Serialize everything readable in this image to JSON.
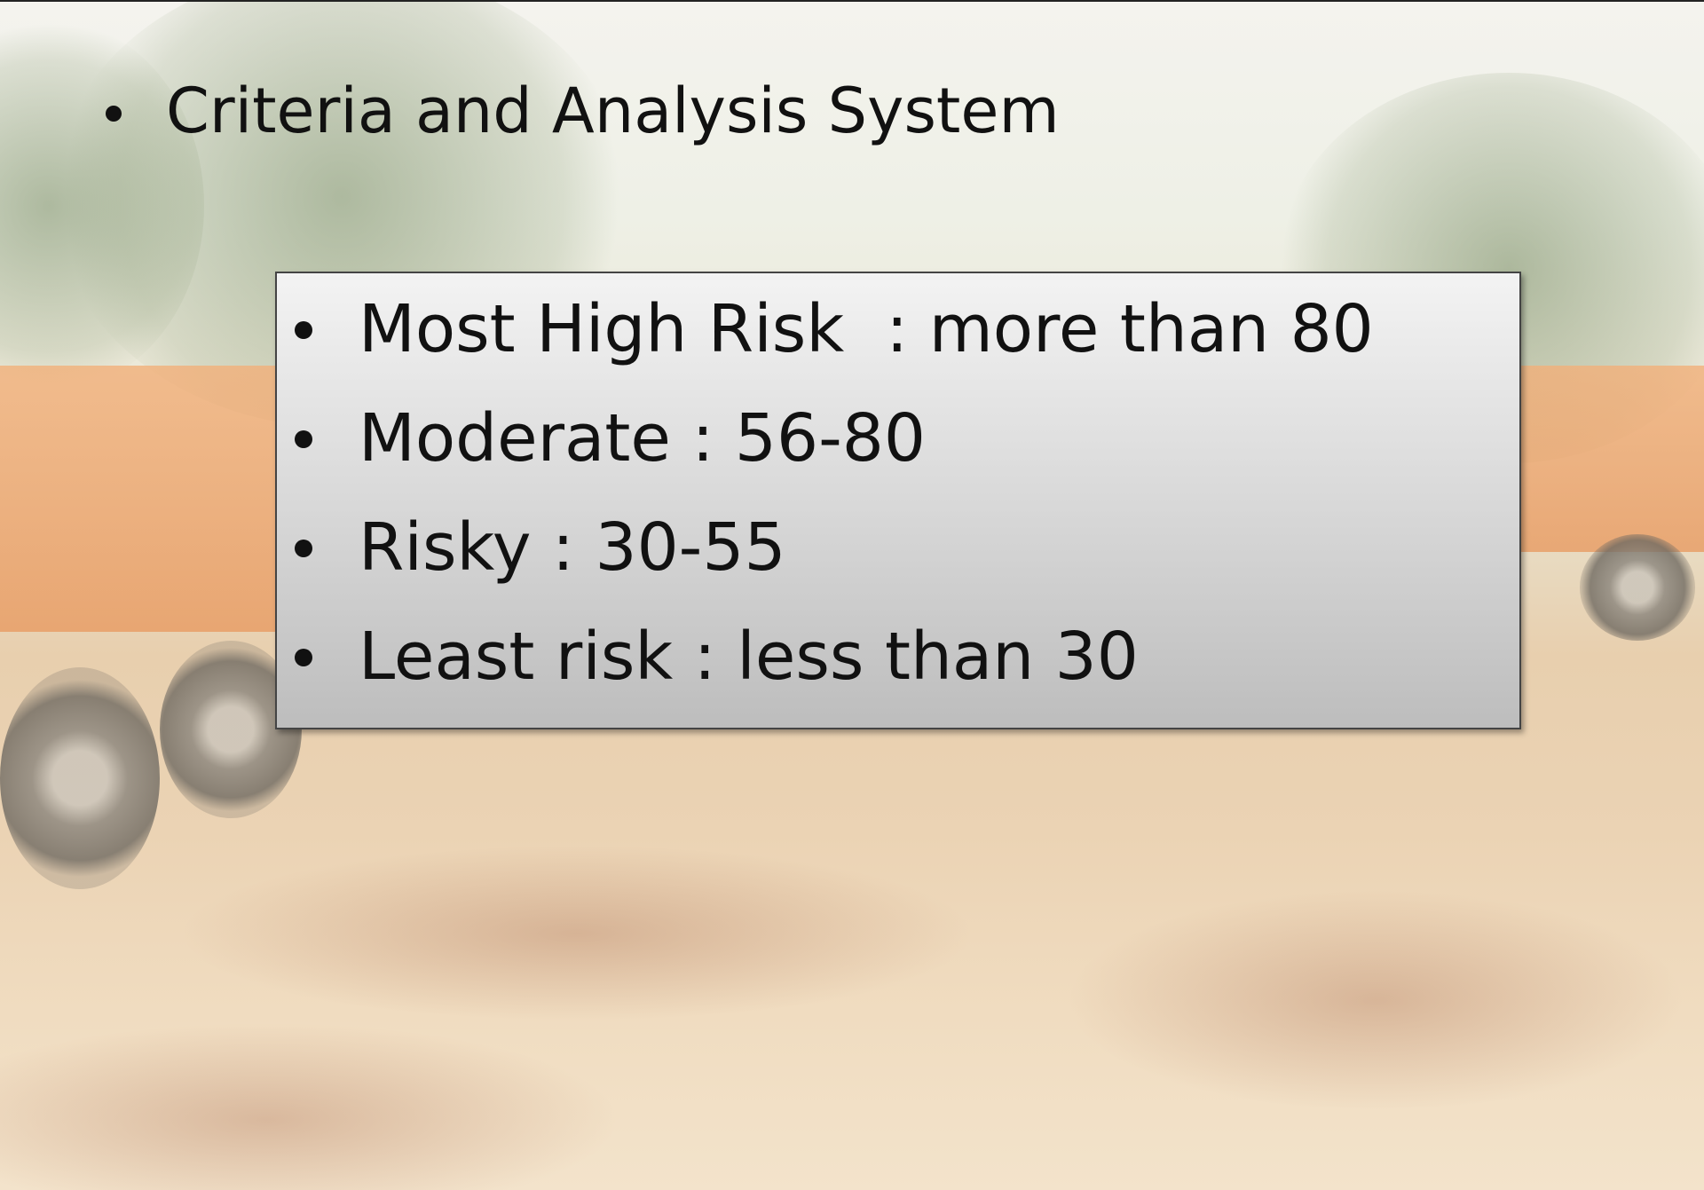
{
  "slide": {
    "heading": "Criteria and Analysis System",
    "criteria": [
      "Most High Risk  : more than 80",
      "Moderate : 56-80",
      "Risky : 30-55",
      "Least risk : less than 30"
    ]
  }
}
